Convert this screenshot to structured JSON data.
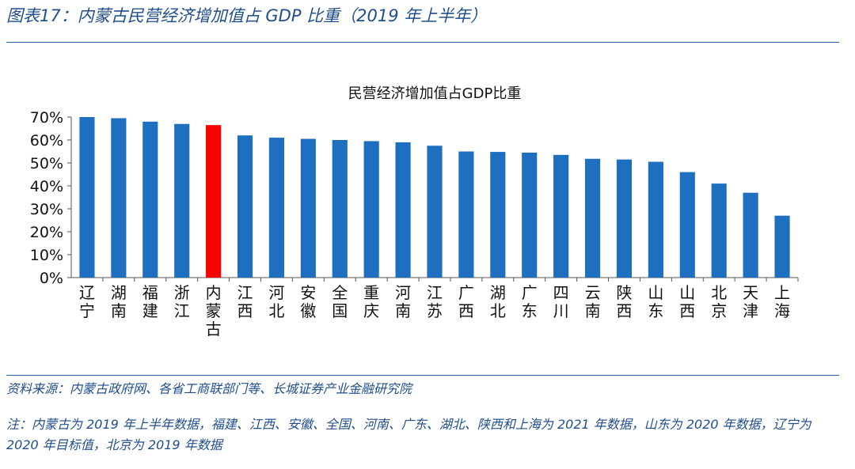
{
  "figure_title": "图表17：内蒙古民营经济增加值占 GDP 比重（2019 年上半年）",
  "source": "资料来源：内蒙古政府网、各省工商联部门等、长城证券产业金融研究院",
  "note": "注：内蒙古为 2019 年上半年数据，福建、江西、安徽、全国、河南、广东、湖北、陕西和上海为 2021 年数据，山东为 2020 年数据，辽宁为 2020 年目标值，北京为 2019 年数据",
  "colors": {
    "bar": "#1f6fc0",
    "highlight": "#ff0000",
    "accent": "#1f4e8c"
  },
  "chart_data": {
    "type": "bar",
    "title": "民营经济增加值占GDP比重",
    "categories": [
      "辽宁",
      "湖南",
      "福建",
      "浙江",
      "内蒙古",
      "江西",
      "河北",
      "安徽",
      "全国",
      "重庆",
      "河南",
      "江苏",
      "广西",
      "湖北",
      "广东",
      "四川",
      "云南",
      "陕西",
      "山东",
      "山西",
      "北京",
      "天津",
      "上海"
    ],
    "values": [
      70,
      69.5,
      68,
      67,
      66.5,
      62,
      61,
      60.5,
      60,
      59.5,
      59,
      57.5,
      55,
      54.8,
      54.5,
      53.5,
      51.8,
      51.5,
      50.5,
      46,
      41,
      37,
      27
    ],
    "highlight_category": "内蒙古",
    "ylim": [
      0,
      70
    ],
    "yticks": [
      "0%",
      "10%",
      "20%",
      "30%",
      "40%",
      "50%",
      "60%",
      "70%"
    ],
    "xlabel": "",
    "ylabel": "",
    "grid": false,
    "legend": "none"
  }
}
